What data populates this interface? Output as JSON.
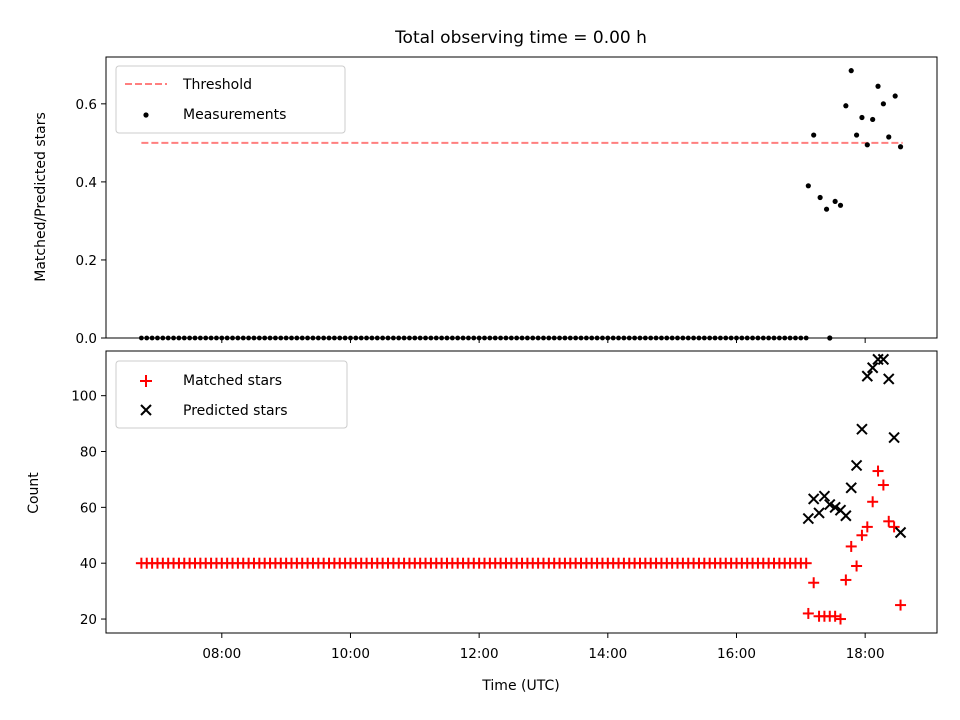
{
  "chart_data": [
    {
      "type": "scatter",
      "title": "Total observing time = 0.00 h",
      "xlabel": "",
      "ylabel": "Matched/Predicted stars",
      "ylim": [
        0,
        0.72
      ],
      "yticks": [
        0,
        0.2,
        0.4,
        0.6
      ],
      "ytick_labels": [
        "0.0",
        "0.2",
        "0.4",
        "0.6"
      ],
      "legend_placement": "upper-left",
      "threshold": {
        "name": "Threshold",
        "value": 0.5,
        "x_range": [
          "06:45",
          "18:35"
        ],
        "color": "#ff7f7f",
        "style": "dashed"
      },
      "measurements": {
        "name": "Measurements",
        "color": "#000000",
        "zero_series": {
          "start": "06:45",
          "end": "17:05",
          "step_minutes": 5
        },
        "points": [
          {
            "x": "17:07",
            "y": 0.39
          },
          {
            "x": "17:12",
            "y": 0.52
          },
          {
            "x": "17:18",
            "y": 0.36
          },
          {
            "x": "17:24",
            "y": 0.33
          },
          {
            "x": "17:27",
            "y": 0.0
          },
          {
            "x": "17:32",
            "y": 0.35
          },
          {
            "x": "17:37",
            "y": 0.34
          },
          {
            "x": "17:42",
            "y": 0.595
          },
          {
            "x": "17:47",
            "y": 0.685
          },
          {
            "x": "17:52",
            "y": 0.52
          },
          {
            "x": "17:57",
            "y": 0.565
          },
          {
            "x": "18:02",
            "y": 0.495
          },
          {
            "x": "18:07",
            "y": 0.56
          },
          {
            "x": "18:12",
            "y": 0.645
          },
          {
            "x": "18:17",
            "y": 0.6
          },
          {
            "x": "18:22",
            "y": 0.515
          },
          {
            "x": "18:28",
            "y": 0.62
          },
          {
            "x": "18:33",
            "y": 0.49
          }
        ]
      }
    },
    {
      "type": "scatter",
      "xlabel": "Time (UTC)",
      "ylabel": "Count",
      "ylim": [
        15,
        116
      ],
      "yticks": [
        20,
        40,
        60,
        80,
        100
      ],
      "ytick_labels": [
        "20",
        "40",
        "60",
        "80",
        "100"
      ],
      "xlim": [
        "06:12",
        "19:07"
      ],
      "xticks": [
        "08:00",
        "10:00",
        "12:00",
        "14:00",
        "16:00",
        "18:00"
      ],
      "legend_placement": "upper-left",
      "series": [
        {
          "name": "Matched stars",
          "marker": "plus",
          "color": "#ff0000",
          "constant_run": {
            "start": "06:45",
            "end": "17:05",
            "step_minutes": 5,
            "value": 40
          },
          "points": [
            {
              "x": "17:07",
              "y": 22
            },
            {
              "x": "17:12",
              "y": 33
            },
            {
              "x": "17:17",
              "y": 21
            },
            {
              "x": "17:22",
              "y": 21
            },
            {
              "x": "17:27",
              "y": 21
            },
            {
              "x": "17:32",
              "y": 21
            },
            {
              "x": "17:37",
              "y": 20
            },
            {
              "x": "17:42",
              "y": 34
            },
            {
              "x": "17:47",
              "y": 46
            },
            {
              "x": "17:52",
              "y": 39
            },
            {
              "x": "17:57",
              "y": 50
            },
            {
              "x": "18:02",
              "y": 53
            },
            {
              "x": "18:07",
              "y": 62
            },
            {
              "x": "18:12",
              "y": 73
            },
            {
              "x": "18:17",
              "y": 68
            },
            {
              "x": "18:22",
              "y": 55
            },
            {
              "x": "18:27",
              "y": 53
            },
            {
              "x": "18:33",
              "y": 25
            }
          ]
        },
        {
          "name": "Predicted stars",
          "marker": "x",
          "color": "#000000",
          "points": [
            {
              "x": "17:07",
              "y": 56
            },
            {
              "x": "17:12",
              "y": 63
            },
            {
              "x": "17:17",
              "y": 58
            },
            {
              "x": "17:22",
              "y": 64
            },
            {
              "x": "17:27",
              "y": 61
            },
            {
              "x": "17:32",
              "y": 60
            },
            {
              "x": "17:37",
              "y": 59
            },
            {
              "x": "17:42",
              "y": 57
            },
            {
              "x": "17:47",
              "y": 67
            },
            {
              "x": "17:52",
              "y": 75
            },
            {
              "x": "17:57",
              "y": 88
            },
            {
              "x": "18:02",
              "y": 107
            },
            {
              "x": "18:07",
              "y": 110
            },
            {
              "x": "18:12",
              "y": 113
            },
            {
              "x": "18:17",
              "y": 113
            },
            {
              "x": "18:22",
              "y": 106
            },
            {
              "x": "18:27",
              "y": 85
            },
            {
              "x": "18:33",
              "y": 51
            }
          ]
        }
      ]
    }
  ]
}
